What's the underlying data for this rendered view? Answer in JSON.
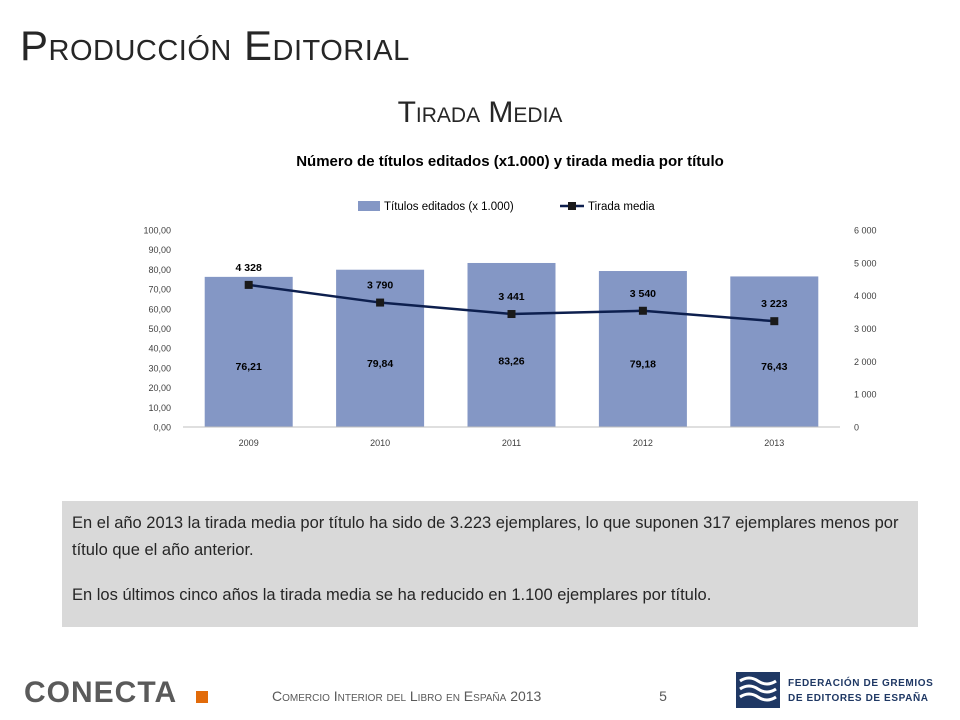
{
  "slide": {
    "title": "Producción Editorial",
    "section": "Tirada Media",
    "page_number": "5",
    "footer": "Comercio Interior del Libro en España 2013"
  },
  "note": {
    "paragraph1": "En el año 2013 la tirada media por título ha sido de 3.223 ejemplares, lo que suponen 317 ejemplares menos por título que el año anterior.",
    "paragraph2": "En los últimos cinco años la tirada media se ha reducido en 1.100 ejemplares por título."
  },
  "logos": {
    "conecta": "CONECTA",
    "fge_line1": "FEDERACIÓN DE GREMIOS",
    "fge_line2": "DE EDITORES DE ESPAÑA"
  },
  "colors": {
    "bar": "#8497c5",
    "line": "#0d1f4e",
    "conecta_accent": "#e26b0a",
    "fge_blue": "#1f3864"
  },
  "chart_data": {
    "type": "bar",
    "title": "Número de títulos editados (x1.000) y tirada media por título",
    "categories": [
      "2009",
      "2010",
      "2011",
      "2012",
      "2013"
    ],
    "series": [
      {
        "name": "Títulos editados (x 1.000)",
        "type": "bar",
        "axis": "left",
        "values": [
          76.21,
          79.84,
          83.26,
          79.18,
          76.43
        ],
        "labels": [
          "76,21",
          "79,84",
          "83,26",
          "79,18",
          "76,43"
        ]
      },
      {
        "name": "Tirada media",
        "type": "line",
        "axis": "right",
        "values": [
          4328,
          3790,
          3441,
          3540,
          3223
        ],
        "labels": [
          "4 328",
          "3 790",
          "3 441",
          "3 540",
          "3 223"
        ]
      }
    ],
    "y_left": {
      "range": [
        0,
        100
      ],
      "ticks": [
        "0,00",
        "10,00",
        "20,00",
        "30,00",
        "40,00",
        "50,00",
        "60,00",
        "70,00",
        "80,00",
        "90,00",
        "100,00"
      ]
    },
    "y_right": {
      "range": [
        0,
        6000
      ],
      "ticks": [
        "0",
        "1 000",
        "2 000",
        "3 000",
        "4 000",
        "5 000",
        "6 000"
      ]
    },
    "legend_position": "top",
    "grid": false
  }
}
